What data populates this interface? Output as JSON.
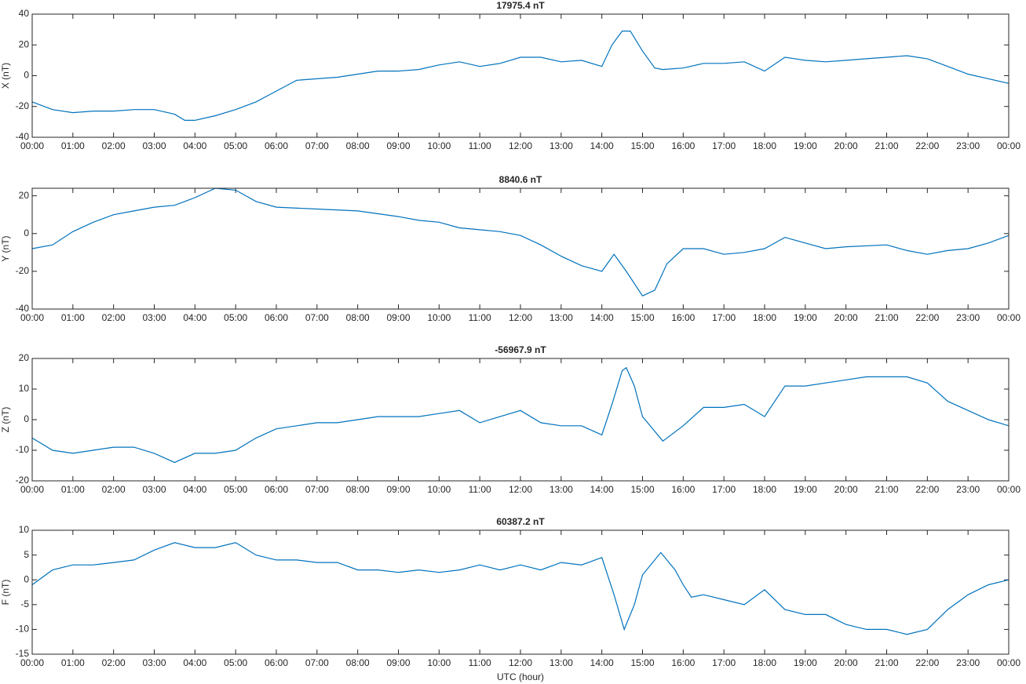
{
  "chart_data": [
    {
      "type": "line",
      "title": "17975.4 nT",
      "ylabel": "X (nT)",
      "x": [
        0,
        0.5,
        1,
        1.5,
        2,
        2.5,
        3,
        3.5,
        3.75,
        4,
        4.5,
        5,
        5.5,
        6,
        6.5,
        7,
        7.5,
        8,
        8.5,
        9,
        9.5,
        10,
        10.5,
        11,
        11.5,
        12,
        12.5,
        13,
        13.5,
        14,
        14.25,
        14.5,
        14.7,
        15,
        15.3,
        15.5,
        16,
        16.5,
        17,
        17.5,
        18,
        18.5,
        19,
        19.5,
        20,
        20.5,
        21,
        21.5,
        22,
        22.5,
        23,
        23.5,
        24
      ],
      "series": [
        {
          "name": "X",
          "color": "#0072BD",
          "values": [
            -17,
            -22,
            -24,
            -23,
            -23,
            -22,
            -22,
            -25,
            -29,
            -29,
            -26,
            -22,
            -17,
            -10,
            -3,
            -2,
            -1,
            1,
            3,
            3,
            4,
            7,
            9,
            6,
            8,
            12,
            12,
            9,
            10,
            6,
            20,
            29,
            29,
            16,
            5,
            4,
            5,
            8,
            8,
            9,
            3,
            12,
            10,
            9,
            10,
            11,
            12,
            13,
            11,
            6,
            1,
            -2,
            -5
          ]
        }
      ],
      "xlim": [
        0,
        24
      ],
      "ylim": [
        -40,
        40
      ],
      "yticks": [
        -40,
        -20,
        0,
        20,
        40
      ],
      "xticks": [
        {
          "value": 0,
          "label": "00:00"
        },
        {
          "value": 1,
          "label": "01:00"
        },
        {
          "value": 2,
          "label": "02:00"
        },
        {
          "value": 3,
          "label": "03:00"
        },
        {
          "value": 4,
          "label": "04:00"
        },
        {
          "value": 5,
          "label": "05:00"
        },
        {
          "value": 6,
          "label": "06:00"
        },
        {
          "value": 7,
          "label": "07:00"
        },
        {
          "value": 8,
          "label": "08:00"
        },
        {
          "value": 9,
          "label": "09:00"
        },
        {
          "value": 10,
          "label": "10:00"
        },
        {
          "value": 11,
          "label": "11:00"
        },
        {
          "value": 12,
          "label": "12:00"
        },
        {
          "value": 13,
          "label": "13:00"
        },
        {
          "value": 14,
          "label": "14:00"
        },
        {
          "value": 15,
          "label": "15:00"
        },
        {
          "value": 16,
          "label": "16:00"
        },
        {
          "value": 17,
          "label": "17:00"
        },
        {
          "value": 18,
          "label": "18:00"
        },
        {
          "value": 19,
          "label": "19:00"
        },
        {
          "value": 20,
          "label": "20:00"
        },
        {
          "value": 21,
          "label": "21:00"
        },
        {
          "value": 22,
          "label": "22:00"
        },
        {
          "value": 23,
          "label": "23:00"
        },
        {
          "value": 24,
          "label": "00:00"
        }
      ]
    },
    {
      "type": "line",
      "title": "8840.6 nT",
      "ylabel": "Y (nT)",
      "x": [
        0,
        0.5,
        1,
        1.5,
        2,
        2.5,
        3,
        3.5,
        4,
        4.5,
        5,
        5.5,
        6,
        7,
        8,
        9,
        9.5,
        10,
        10.5,
        11,
        11.5,
        12,
        12.5,
        13,
        13.5,
        14,
        14.3,
        14.6,
        15,
        15.3,
        15.6,
        16,
        16.5,
        17,
        17.5,
        18,
        18.5,
        19,
        19.5,
        20,
        21,
        21.5,
        22,
        22.5,
        23,
        23.5,
        24
      ],
      "series": [
        {
          "name": "Y",
          "color": "#0072BD",
          "values": [
            -8,
            -6,
            1,
            6,
            10,
            12,
            14,
            15,
            19,
            24,
            23,
            17,
            14,
            13,
            12,
            9,
            7,
            6,
            3,
            2,
            1,
            -1,
            -6,
            -12,
            -17,
            -20,
            -11,
            -20,
            -33,
            -30,
            -16,
            -8,
            -8,
            -11,
            -10,
            -8,
            -2,
            -5,
            -8,
            -7,
            -6,
            -9,
            -11,
            -9,
            -8,
            -5,
            -1
          ]
        }
      ],
      "xlim": [
        0,
        24
      ],
      "ylim": [
        -40,
        24
      ],
      "yticks": [
        -40,
        -20,
        0,
        20
      ],
      "xticks": [
        {
          "value": 0,
          "label": "00:00"
        },
        {
          "value": 1,
          "label": "01:00"
        },
        {
          "value": 2,
          "label": "02:00"
        },
        {
          "value": 3,
          "label": "03:00"
        },
        {
          "value": 4,
          "label": "04:00"
        },
        {
          "value": 5,
          "label": "05:00"
        },
        {
          "value": 6,
          "label": "06:00"
        },
        {
          "value": 7,
          "label": "07:00"
        },
        {
          "value": 8,
          "label": "08:00"
        },
        {
          "value": 9,
          "label": "09:00"
        },
        {
          "value": 10,
          "label": "10:00"
        },
        {
          "value": 11,
          "label": "11:00"
        },
        {
          "value": 12,
          "label": "12:00"
        },
        {
          "value": 13,
          "label": "13:00"
        },
        {
          "value": 14,
          "label": "14:00"
        },
        {
          "value": 15,
          "label": "15:00"
        },
        {
          "value": 16,
          "label": "16:00"
        },
        {
          "value": 17,
          "label": "17:00"
        },
        {
          "value": 18,
          "label": "18:00"
        },
        {
          "value": 19,
          "label": "19:00"
        },
        {
          "value": 20,
          "label": "20:00"
        },
        {
          "value": 21,
          "label": "21:00"
        },
        {
          "value": 22,
          "label": "22:00"
        },
        {
          "value": 23,
          "label": "23:00"
        },
        {
          "value": 24,
          "label": "00:00"
        }
      ]
    },
    {
      "type": "line",
      "title": "-56967.9 nT",
      "ylabel": "Z (nT)",
      "x": [
        0,
        0.5,
        1,
        1.5,
        2,
        2.5,
        3,
        3.5,
        4,
        4.5,
        5,
        5.5,
        6,
        6.5,
        7,
        7.5,
        8,
        8.5,
        9,
        9.5,
        10,
        10.5,
        11,
        11.5,
        12,
        12.5,
        13,
        13.5,
        14,
        14.25,
        14.5,
        14.6,
        14.8,
        15,
        15.5,
        16,
        16.5,
        17,
        17.5,
        18,
        18.5,
        19,
        19.5,
        20,
        20.5,
        21,
        21.5,
        22,
        22.5,
        23,
        23.5,
        24
      ],
      "series": [
        {
          "name": "Z",
          "color": "#0072BD",
          "values": [
            -6,
            -10,
            -11,
            -10,
            -9,
            -9,
            -11,
            -14,
            -11,
            -11,
            -10,
            -6,
            -3,
            -2,
            -1,
            -1,
            0,
            1,
            1,
            1,
            2,
            3,
            -1,
            1,
            3,
            -1,
            -2,
            -2,
            -5,
            5,
            16,
            17,
            11,
            1,
            -7,
            -2,
            4,
            4,
            5,
            1,
            11,
            11,
            12,
            13,
            14,
            14,
            14,
            12,
            6,
            3,
            0,
            -2
          ]
        }
      ],
      "xlim": [
        0,
        24
      ],
      "ylim": [
        -20,
        20
      ],
      "yticks": [
        -20,
        -10,
        0,
        10,
        20
      ],
      "xticks": [
        {
          "value": 0,
          "label": "00:00"
        },
        {
          "value": 1,
          "label": "01:00"
        },
        {
          "value": 2,
          "label": "02:00"
        },
        {
          "value": 3,
          "label": "03:00"
        },
        {
          "value": 4,
          "label": "04:00"
        },
        {
          "value": 5,
          "label": "05:00"
        },
        {
          "value": 6,
          "label": "06:00"
        },
        {
          "value": 7,
          "label": "07:00"
        },
        {
          "value": 8,
          "label": "08:00"
        },
        {
          "value": 9,
          "label": "09:00"
        },
        {
          "value": 10,
          "label": "10:00"
        },
        {
          "value": 11,
          "label": "11:00"
        },
        {
          "value": 12,
          "label": "12:00"
        },
        {
          "value": 13,
          "label": "13:00"
        },
        {
          "value": 14,
          "label": "14:00"
        },
        {
          "value": 15,
          "label": "15:00"
        },
        {
          "value": 16,
          "label": "16:00"
        },
        {
          "value": 17,
          "label": "17:00"
        },
        {
          "value": 18,
          "label": "18:00"
        },
        {
          "value": 19,
          "label": "19:00"
        },
        {
          "value": 20,
          "label": "20:00"
        },
        {
          "value": 21,
          "label": "21:00"
        },
        {
          "value": 22,
          "label": "22:00"
        },
        {
          "value": 23,
          "label": "23:00"
        },
        {
          "value": 24,
          "label": "00:00"
        }
      ]
    },
    {
      "type": "line",
      "title": "60387.2 nT",
      "ylabel": "F (nT)",
      "xlabel": "UTC (hour)",
      "x": [
        0,
        0.5,
        1,
        1.5,
        2,
        2.5,
        3,
        3.5,
        4,
        4.5,
        5,
        5.5,
        6,
        6.5,
        7,
        7.5,
        8,
        8.5,
        9,
        9.5,
        10,
        10.5,
        11,
        11.5,
        12,
        12.5,
        13,
        13.5,
        14,
        14.3,
        14.55,
        14.8,
        15,
        15.45,
        15.8,
        16,
        16.2,
        16.5,
        17,
        17.5,
        18,
        18.5,
        19,
        19.5,
        20,
        20.5,
        21,
        21.5,
        22,
        22.5,
        23,
        23.5,
        24
      ],
      "series": [
        {
          "name": "F",
          "color": "#0072BD",
          "values": [
            -1,
            2,
            3,
            3,
            3.5,
            4,
            6,
            7.5,
            6.5,
            6.5,
            7.5,
            5,
            4,
            4,
            3.5,
            3.5,
            2,
            2,
            1.5,
            2,
            1.5,
            2,
            3,
            2,
            3,
            2,
            3.5,
            3,
            4.5,
            -3,
            -10,
            -5,
            1,
            5.5,
            2,
            -1,
            -3.5,
            -3,
            -4,
            -5,
            -2,
            -6,
            -7,
            -7,
            -9,
            -10,
            -10,
            -11,
            -10,
            -6,
            -3,
            -1,
            0
          ]
        }
      ],
      "xlim": [
        0,
        24
      ],
      "ylim": [
        -15,
        10
      ],
      "yticks": [
        -15,
        -10,
        -5,
        0,
        5,
        10
      ],
      "xticks": [
        {
          "value": 0,
          "label": "00:00"
        },
        {
          "value": 1,
          "label": "01:00"
        },
        {
          "value": 2,
          "label": "02:00"
        },
        {
          "value": 3,
          "label": "03:00"
        },
        {
          "value": 4,
          "label": "04:00"
        },
        {
          "value": 5,
          "label": "05:00"
        },
        {
          "value": 6,
          "label": "06:00"
        },
        {
          "value": 7,
          "label": "07:00"
        },
        {
          "value": 8,
          "label": "08:00"
        },
        {
          "value": 9,
          "label": "09:00"
        },
        {
          "value": 10,
          "label": "10:00"
        },
        {
          "value": 11,
          "label": "11:00"
        },
        {
          "value": 12,
          "label": "12:00"
        },
        {
          "value": 13,
          "label": "13:00"
        },
        {
          "value": 14,
          "label": "14:00"
        },
        {
          "value": 15,
          "label": "15:00"
        },
        {
          "value": 16,
          "label": "16:00"
        },
        {
          "value": 17,
          "label": "17:00"
        },
        {
          "value": 18,
          "label": "18:00"
        },
        {
          "value": 19,
          "label": "19:00"
        },
        {
          "value": 20,
          "label": "20:00"
        },
        {
          "value": 21,
          "label": "21:00"
        },
        {
          "value": 22,
          "label": "22:00"
        },
        {
          "value": 23,
          "label": "23:00"
        },
        {
          "value": 24,
          "label": "00:00"
        }
      ]
    }
  ]
}
